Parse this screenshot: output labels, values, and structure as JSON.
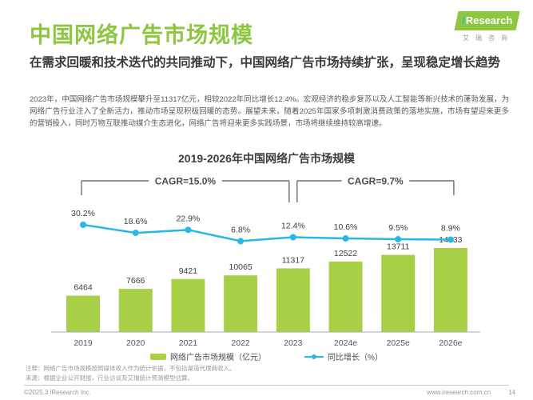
{
  "colors": {
    "accent_green": "#8dc63f",
    "bar_green": "#a8d046",
    "line_blue": "#29b7e8"
  },
  "header": {
    "title": "中国网络广告市场规模",
    "logo": {
      "brand_i": "i",
      "brand_rest": "Research",
      "subtext": "艾瑞咨询"
    },
    "headline": "在需求回暖和技术迭代的共同推动下，中国网络广告市场持续扩张，呈现稳定增长趋势",
    "paragraph": "2023年，中国网络广告市场规模攀升至11317亿元，相较2022年同比增长12.4%。宏观经济的稳步复苏以及人工智能等新兴技术的蓬勃发展，为网络广告行业注入了全新活力，推动市场呈现积极回暖的态势。展望未来，随着2025年国家多项刺激消费政策的落地实施，市场有望迎来更多的营销投入，同时万物互联推动媒介生态进化，网络广告将迎来更多实践场景，市场将继续维持较高增速。"
  },
  "chart_data": {
    "type": "bar",
    "title": "2019-2026年中国网络广告市场规模",
    "categories": [
      "2019",
      "2020",
      "2021",
      "2022",
      "2023",
      "2024e",
      "2025e",
      "2026e"
    ],
    "series": [
      {
        "name": "网络广告市场规模（亿元）",
        "type": "bar",
        "values": [
          6464,
          7666,
          9421,
          10065,
          11317,
          12522,
          13711,
          14933
        ],
        "color": "#a8d046"
      },
      {
        "name": "同比增长（%）",
        "type": "line",
        "values": [
          30.2,
          18.6,
          22.9,
          6.8,
          12.4,
          10.6,
          9.5,
          8.9
        ],
        "labels": [
          "30.2%",
          "18.6%",
          "22.9%",
          "6.8%",
          "12.4%",
          "10.6%",
          "9.5%",
          "8.9%"
        ],
        "color": "#29b7e8"
      }
    ],
    "annotations": [
      {
        "label": "CAGR=15.0%",
        "from": 0,
        "to": 4
      },
      {
        "label": "CAGR=9.7%",
        "from": 4,
        "to": 7
      }
    ],
    "xlabel": "",
    "ylabel": "",
    "ylim_bar": [
      0,
      16000
    ],
    "ylim_line": [
      0,
      35
    ],
    "grid": false,
    "legend_position": "bottom"
  },
  "notes": {
    "line1": "注释：网络广告市场规模按照媒体收入作为统计依据，不包括渠道代理商收入。",
    "line2": "来源：根据企业公开财报，行业访谈及艾瑞统计预测模型估算。"
  },
  "footer": {
    "copyright": "©2025.3 iResearch Inc.",
    "website": "www.iresearch.com.cn",
    "page": "14"
  }
}
